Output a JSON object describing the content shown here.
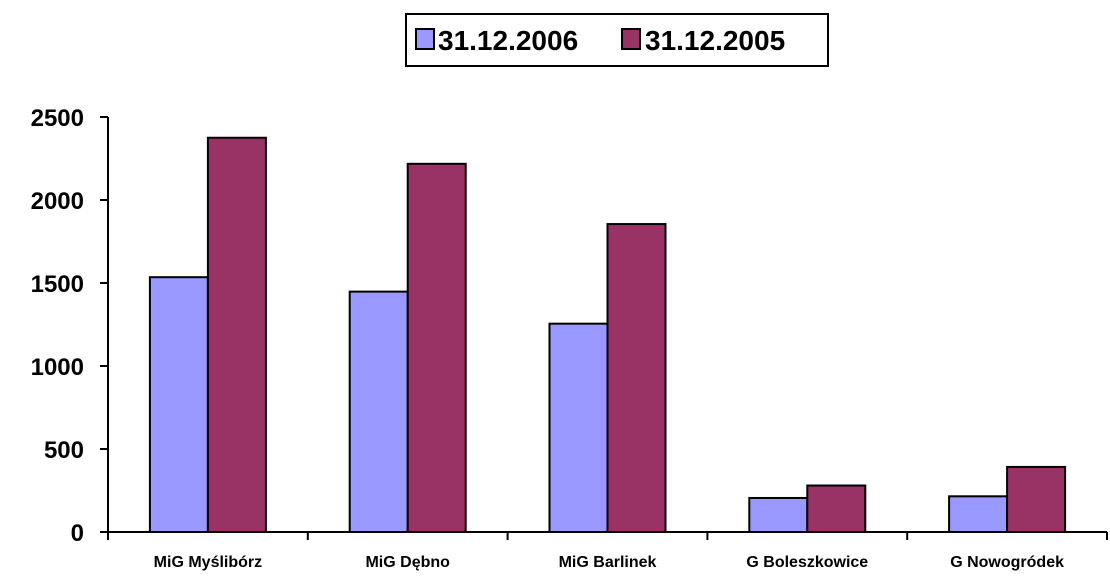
{
  "chart_data": {
    "type": "bar",
    "categories": [
      "MiG Myślibórz",
      "MiG Dębno",
      "MiG Barlinek",
      "G Boleszkowice",
      "G Nowogródek"
    ],
    "series": [
      {
        "name": "31.12.2006",
        "values": [
          1535,
          1448,
          1255,
          205,
          215
        ],
        "color": "#9999ff"
      },
      {
        "name": "31.12.2005",
        "values": [
          2375,
          2218,
          1855,
          280,
          392
        ],
        "color": "#993366"
      }
    ],
    "ylim": [
      0,
      2500
    ],
    "yticks": [
      0,
      500,
      1000,
      1500,
      2000,
      2500
    ],
    "legend_position": "top-center",
    "grid": false
  }
}
